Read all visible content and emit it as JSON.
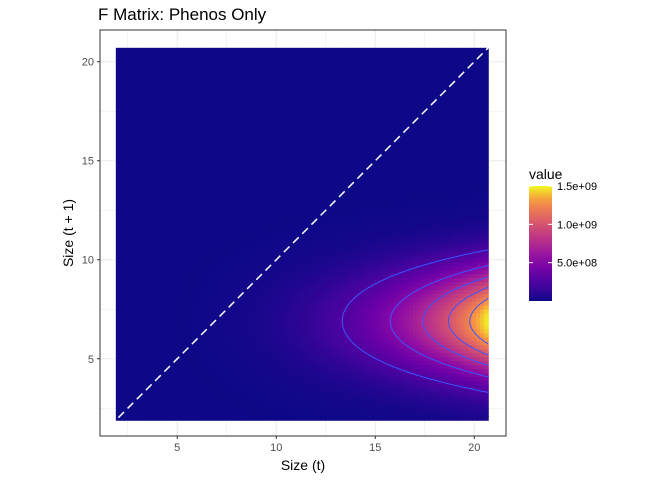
{
  "chart_data": {
    "type": "heatmap",
    "title": "F Matrix: Phenos Only",
    "xlabel": "Size (t)",
    "ylabel": "Size (t + 1)",
    "xlim": [
      1.1,
      21.6
    ],
    "ylim": [
      1.1,
      21.6
    ],
    "x_ticks": [
      5,
      10,
      15,
      20
    ],
    "y_ticks": [
      5,
      10,
      15,
      20
    ],
    "x_tick_labels": [
      "5",
      "10",
      "15",
      "20"
    ],
    "y_tick_labels": [
      "5",
      "10",
      "15",
      "20"
    ],
    "grid": true,
    "x_range": [
      1.9,
      20.7
    ],
    "y_range": [
      1.9,
      20.7
    ],
    "resolution": 94,
    "field": {
      "max_value": 1500000000,
      "peak_y": 6.9,
      "x_exponent": 3.6,
      "y_sd": 1.9
    },
    "contour_levels": [
      250000000,
      500000000,
      750000000,
      1000000000,
      1250000000
    ],
    "contour_color": "#3a56ff",
    "reference_line": {
      "slope": 1,
      "intercept": 0,
      "style": "dashed",
      "color": "#ffffff"
    },
    "colorscale": "plasma",
    "legend": {
      "title": "value",
      "position": "right",
      "range": [
        0,
        1500000000
      ],
      "ticks": [
        500000000,
        1000000000,
        1500000000
      ],
      "tick_labels": [
        "5.0e+08",
        "1.0e+09",
        "1.5e+09"
      ]
    }
  }
}
